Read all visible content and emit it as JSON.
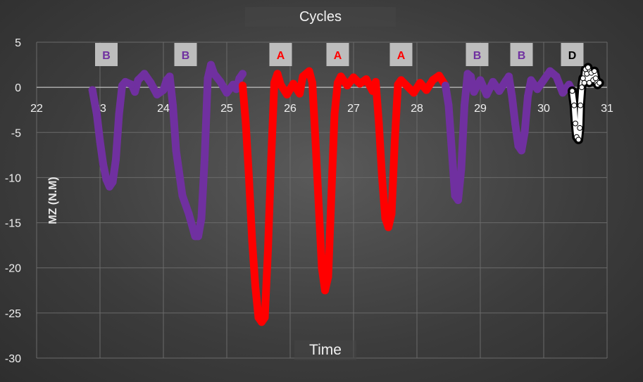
{
  "chart_data": {
    "type": "scatter",
    "title": "Cycles",
    "xlabel": "Time",
    "ylabel": "MZ (N.M)",
    "xlim": [
      22,
      31
    ],
    "ylim": [
      -30,
      5
    ],
    "xticks": [
      "22",
      "23",
      "24",
      "25",
      "26",
      "27",
      "28",
      "29",
      "30",
      "31"
    ],
    "yticks": [
      "5",
      "0",
      "-5",
      "-10",
      "-15",
      "-20",
      "-25",
      "-30"
    ],
    "grid": true,
    "segment_labels": [
      {
        "label": "B",
        "x": 23.1,
        "color": "#7030a0"
      },
      {
        "label": "B",
        "x": 24.35,
        "color": "#7030a0"
      },
      {
        "label": "A",
        "x": 25.85,
        "color": "#ff0000"
      },
      {
        "label": "A",
        "x": 26.75,
        "color": "#ff0000"
      },
      {
        "label": "A",
        "x": 27.75,
        "color": "#ff0000"
      },
      {
        "label": "B",
        "x": 28.95,
        "color": "#7030a0"
      },
      {
        "label": "B",
        "x": 29.65,
        "color": "#7030a0"
      },
      {
        "label": "D",
        "x": 30.45,
        "color": "#000000"
      }
    ],
    "series": [
      {
        "color": "#7030a0",
        "points": [
          [
            22.88,
            -0.3
          ],
          [
            22.95,
            -3
          ],
          [
            23.0,
            -6
          ],
          [
            23.05,
            -8.5
          ],
          [
            23.1,
            -10.2
          ],
          [
            23.15,
            -11
          ],
          [
            23.2,
            -10.5
          ],
          [
            23.25,
            -8
          ],
          [
            23.3,
            -3
          ],
          [
            23.35,
            0.2
          ],
          [
            23.4,
            0.6
          ],
          [
            23.5,
            0.3
          ],
          [
            23.55,
            -0.5
          ],
          [
            23.6,
            0.8
          ],
          [
            23.7,
            1.5
          ],
          [
            23.8,
            0.5
          ],
          [
            23.9,
            -0.8
          ],
          [
            24.0,
            -0.3
          ],
          [
            24.05,
            0.8
          ],
          [
            24.1,
            1.2
          ],
          [
            24.15,
            -2
          ],
          [
            24.2,
            -7
          ],
          [
            24.3,
            -12
          ],
          [
            24.4,
            -14
          ],
          [
            24.5,
            -16.5
          ],
          [
            24.55,
            -16.5
          ],
          [
            24.6,
            -14.5
          ],
          [
            24.65,
            -8
          ],
          [
            24.7,
            1
          ],
          [
            24.75,
            2.5
          ],
          [
            24.8,
            1.5
          ],
          [
            24.9,
            0.6
          ],
          [
            25.0,
            -0.6
          ],
          [
            25.1,
            0.3
          ],
          [
            25.15,
            -0.2
          ],
          [
            25.2,
            1.0
          ],
          [
            25.25,
            1.5
          ]
        ]
      },
      {
        "color": "#ff0000",
        "points": [
          [
            25.25,
            0.2
          ],
          [
            25.3,
            -4
          ],
          [
            25.35,
            -10
          ],
          [
            25.4,
            -17
          ],
          [
            25.45,
            -22
          ],
          [
            25.5,
            -25.5
          ],
          [
            25.55,
            -26
          ],
          [
            25.6,
            -25.5
          ],
          [
            25.65,
            -18
          ],
          [
            25.7,
            -8
          ],
          [
            25.75,
            0.5
          ],
          [
            25.8,
            1.5
          ],
          [
            25.85,
            0.3
          ],
          [
            25.95,
            -0.8
          ],
          [
            26.05,
            0.4
          ],
          [
            26.15,
            -0.7
          ],
          [
            26.2,
            1.2
          ],
          [
            26.3,
            1.8
          ],
          [
            26.35,
            0.5
          ],
          [
            26.4,
            -6
          ],
          [
            26.45,
            -13
          ],
          [
            26.5,
            -20
          ],
          [
            26.55,
            -22.5
          ],
          [
            26.6,
            -21
          ],
          [
            26.65,
            -12
          ],
          [
            26.7,
            -3
          ],
          [
            26.75,
            0.5
          ],
          [
            26.8,
            1.2
          ],
          [
            26.9,
            0.2
          ],
          [
            27.0,
            1.1
          ],
          [
            27.1,
            0.4
          ],
          [
            27.2,
            0.9
          ],
          [
            27.3,
            -0.4
          ],
          [
            27.35,
            0.6
          ],
          [
            27.4,
            -4
          ],
          [
            27.45,
            -10
          ],
          [
            27.5,
            -14.5
          ],
          [
            27.55,
            -15.5
          ],
          [
            27.6,
            -14
          ],
          [
            27.65,
            -6
          ],
          [
            27.7,
            0.3
          ],
          [
            27.75,
            0.8
          ],
          [
            27.85,
            0.1
          ],
          [
            27.95,
            -0.6
          ],
          [
            28.05,
            0.5
          ],
          [
            28.15,
            -0.3
          ],
          [
            28.25,
            0.8
          ],
          [
            28.35,
            1.3
          ],
          [
            28.45,
            0.2
          ]
        ]
      },
      {
        "color": "#7030a0",
        "points": [
          [
            28.45,
            0.2
          ],
          [
            28.5,
            -2
          ],
          [
            28.55,
            -7
          ],
          [
            28.6,
            -12
          ],
          [
            28.65,
            -12.5
          ],
          [
            28.7,
            -9
          ],
          [
            28.75,
            -2
          ],
          [
            28.8,
            1.5
          ],
          [
            28.85,
            1.2
          ],
          [
            28.9,
            -0.5
          ],
          [
            29.0,
            0.8
          ],
          [
            29.1,
            -0.8
          ],
          [
            29.2,
            0.6
          ],
          [
            29.3,
            -0.4
          ],
          [
            29.4,
            0.7
          ],
          [
            29.45,
            1.2
          ],
          [
            29.5,
            -1
          ],
          [
            29.55,
            -4
          ],
          [
            29.6,
            -6.5
          ],
          [
            29.65,
            -7
          ],
          [
            29.7,
            -5
          ],
          [
            29.75,
            -1
          ],
          [
            29.8,
            0.8
          ],
          [
            29.9,
            -0.2
          ],
          [
            30.0,
            0.8
          ],
          [
            30.1,
            1.8
          ],
          [
            30.2,
            1.2
          ],
          [
            30.3,
            -0.6
          ],
          [
            30.4,
            0.3
          ],
          [
            30.45,
            -0.4
          ]
        ]
      },
      {
        "color": "#ffffff",
        "points": [
          [
            30.45,
            -0.4
          ],
          [
            30.48,
            -2
          ],
          [
            30.5,
            -4
          ],
          [
            30.52,
            -5.5
          ],
          [
            30.55,
            -5.8
          ],
          [
            30.57,
            -4.5
          ],
          [
            30.58,
            -2
          ],
          [
            30.6,
            0
          ],
          [
            30.62,
            1
          ],
          [
            30.64,
            0.5
          ],
          [
            30.66,
            2
          ],
          [
            30.68,
            1.5
          ],
          [
            30.7,
            2.2
          ],
          [
            30.72,
            0.5
          ],
          [
            30.75,
            1.6
          ],
          [
            30.78,
            0.8
          ],
          [
            30.8,
            1.8
          ],
          [
            30.82,
            1
          ],
          [
            30.85,
            0.3
          ],
          [
            30.88,
            0.5
          ]
        ]
      }
    ]
  }
}
